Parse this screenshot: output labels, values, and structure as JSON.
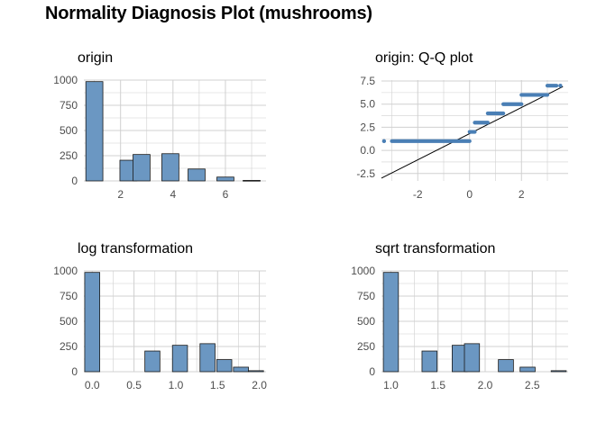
{
  "title": "Normality Diagnosis Plot (mushrooms)",
  "colors": {
    "bar_fill": "#6b97c2",
    "bar_stroke": "#1a1a1a",
    "grid": "#d0d0d0",
    "point": "#4a7fb5",
    "line": "#000000"
  },
  "chart_data": [
    {
      "type": "bar",
      "title": "origin",
      "xlim": [
        0.6,
        7.55
      ],
      "ylim": [
        0,
        1000
      ],
      "xticks": [
        2,
        4,
        6
      ],
      "yticks": [
        0,
        250,
        500,
        750,
        1000
      ],
      "bin_width": 0.65,
      "bars": [
        {
          "x": 1.0,
          "value": 985
        },
        {
          "x": 2.3,
          "value": 205
        },
        {
          "x": 2.8,
          "value": 262
        },
        {
          "x": 3.9,
          "value": 270
        },
        {
          "x": 4.9,
          "value": 118
        },
        {
          "x": 6.0,
          "value": 38
        },
        {
          "x": 7.0,
          "value": 5
        }
      ]
    },
    {
      "type": "scatter",
      "title": "origin: Q-Q plot",
      "xlim": [
        -3.4,
        3.8
      ],
      "ylim": [
        -3.3,
        7.6
      ],
      "xticks": [
        -2,
        0,
        2
      ],
      "yticks": [
        -2.5,
        0.0,
        2.5,
        5.0,
        7.5
      ],
      "ytick_labels": [
        "-2.5",
        "0.0",
        "2.5",
        "5.0",
        "7.5"
      ],
      "line": {
        "x": [
          -3.4,
          3.6
        ],
        "y": [
          -3.0,
          6.9
        ]
      },
      "segments": [
        {
          "x_start": -3.0,
          "x_end": 0.0,
          "y": 1.0
        },
        {
          "x_start": 0.0,
          "x_end": 0.2,
          "y": 2.0
        },
        {
          "x_start": 0.2,
          "x_end": 0.7,
          "y": 3.0
        },
        {
          "x_start": 0.7,
          "x_end": 1.3,
          "y": 4.0
        },
        {
          "x_start": 1.3,
          "x_end": 2.0,
          "y": 5.0
        },
        {
          "x_start": 2.0,
          "x_end": 3.0,
          "y": 6.0
        },
        {
          "x_start": 3.0,
          "x_end": 3.35,
          "y": 7.0
        }
      ],
      "outliers": [
        {
          "x": -3.3,
          "y": 1.0
        },
        {
          "x": 3.5,
          "y": 7.0
        }
      ]
    },
    {
      "type": "bar",
      "title": "log transformation",
      "xlim": [
        -0.1,
        2.08
      ],
      "ylim": [
        0,
        1000
      ],
      "xticks": [
        0.0,
        0.5,
        1.0,
        1.5,
        2.0
      ],
      "xtick_labels": [
        "0.0",
        "0.5",
        "1.0",
        "1.5",
        "2.0"
      ],
      "yticks": [
        0,
        250,
        500,
        750,
        1000
      ],
      "bin_width": 0.18,
      "bars": [
        {
          "x": 0.0,
          "value": 985
        },
        {
          "x": 0.72,
          "value": 205
        },
        {
          "x": 1.05,
          "value": 262
        },
        {
          "x": 1.38,
          "value": 278
        },
        {
          "x": 1.58,
          "value": 120
        },
        {
          "x": 1.78,
          "value": 45
        },
        {
          "x": 1.96,
          "value": 10
        }
      ]
    },
    {
      "type": "bar",
      "title": "sqrt transformation",
      "xlim": [
        0.9,
        2.88
      ],
      "ylim": [
        0,
        1000
      ],
      "xticks": [
        1.0,
        1.5,
        2.0,
        2.5
      ],
      "xtick_labels": [
        "1.0",
        "1.5",
        "2.0",
        "2.5"
      ],
      "yticks": [
        0,
        250,
        500,
        750,
        1000
      ],
      "bin_width": 0.16,
      "bars": [
        {
          "x": 1.0,
          "value": 985
        },
        {
          "x": 1.41,
          "value": 205
        },
        {
          "x": 1.73,
          "value": 262
        },
        {
          "x": 1.86,
          "value": 278
        },
        {
          "x": 2.22,
          "value": 120
        },
        {
          "x": 2.45,
          "value": 45
        },
        {
          "x": 2.78,
          "value": 10
        }
      ]
    }
  ]
}
